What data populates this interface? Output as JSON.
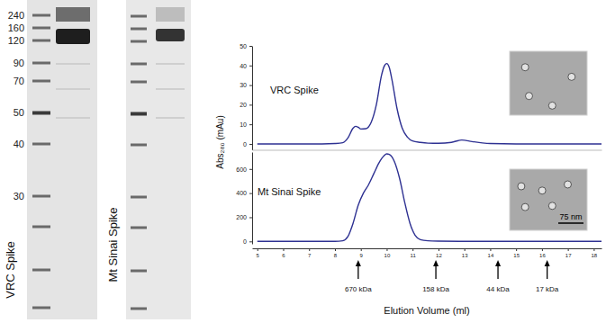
{
  "gels": {
    "marker_labels": [
      240,
      160,
      120,
      90,
      70,
      50,
      40,
      30
    ],
    "lanes": [
      {
        "label": "VRC Spike"
      },
      {
        "label": "Mt Sinai Spike"
      }
    ]
  },
  "chart_data": [
    {
      "type": "line",
      "x": [
        5,
        6,
        7,
        7.5,
        8,
        8.3,
        8.5,
        8.7,
        8.8,
        8.9,
        9.0,
        9.2,
        9.4,
        9.6,
        9.8,
        9.9,
        10.0,
        10.1,
        10.2,
        10.4,
        10.6,
        10.8,
        11,
        11.3,
        11.6,
        12,
        12.5,
        12.9,
        13.3,
        13.7,
        14,
        15,
        16,
        17,
        18,
        18.3
      ],
      "series": [
        {
          "name": "VRC Spike",
          "color": "#2e3192",
          "values": [
            0,
            0,
            0,
            0,
            0.2,
            0.6,
            3,
            8,
            9,
            8.5,
            7.6,
            7.8,
            11,
            20,
            35,
            39.5,
            41,
            39,
            33,
            18,
            8,
            3.5,
            1.5,
            0.8,
            0.4,
            0.3,
            0.8,
            2,
            1.2,
            0.5,
            0.2,
            0,
            0,
            0,
            0,
            0
          ]
        }
      ],
      "xlim": [
        4.8,
        18.3
      ],
      "ylim": [
        -3,
        50
      ],
      "yticks": [
        0,
        10,
        20,
        30,
        40,
        50
      ],
      "tick_labels": "y",
      "ylabel": "Abs₂₈₀ (mAu)"
    },
    {
      "type": "line",
      "x": [
        5,
        6,
        7,
        8,
        8.3,
        8.5,
        8.7,
        8.9,
        9.1,
        9.3,
        9.5,
        9.7,
        9.9,
        10.0,
        10.1,
        10.3,
        10.5,
        10.7,
        10.9,
        11.1,
        11.3,
        11.6,
        12,
        13,
        14,
        15,
        16,
        17,
        18,
        18.3
      ],
      "series": [
        {
          "name": "Mt Sinai Spike",
          "color": "#2e3192",
          "values": [
            0,
            0,
            0,
            0,
            5,
            40,
            150,
            300,
            400,
            470,
            560,
            650,
            710,
            725,
            720,
            660,
            520,
            320,
            150,
            50,
            15,
            5,
            2,
            0,
            0,
            0,
            0,
            0,
            0,
            0
          ]
        }
      ],
      "xlim": [
        4.8,
        18.3
      ],
      "xticks": [
        5,
        6,
        7,
        8,
        9,
        10,
        11,
        12,
        13,
        14,
        15,
        16,
        17,
        18
      ],
      "ylim": [
        -20,
        740
      ],
      "yticks": [
        0,
        200,
        400,
        600
      ],
      "xlabel": "Elution Volume (ml)",
      "annotations": [
        {
          "x": 8.9,
          "label": "670 kDa"
        },
        {
          "x": 11.9,
          "label": "158 kDa"
        },
        {
          "x": 14.3,
          "label": "44 kDa"
        },
        {
          "x": 16.2,
          "label": "17 kDa"
        }
      ],
      "scale_bar": "75 nm"
    }
  ]
}
